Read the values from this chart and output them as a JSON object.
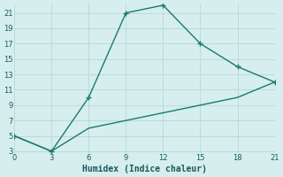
{
  "xlabel": "Humidex (Indice chaleur)",
  "xlim": [
    0,
    21
  ],
  "ylim": [
    3,
    22
  ],
  "xticks": [
    0,
    3,
    6,
    9,
    12,
    15,
    18,
    21
  ],
  "yticks": [
    3,
    5,
    7,
    9,
    11,
    13,
    15,
    17,
    19,
    21
  ],
  "background_color": "#d6eeee",
  "grid_color": "#b8d8d8",
  "line_color": "#1a7a6e",
  "line1_x": [
    0,
    3,
    6,
    9,
    12,
    15,
    18,
    21
  ],
  "line1_y": [
    5,
    3,
    10,
    21,
    22,
    17,
    14,
    12
  ],
  "line2_x": [
    0,
    3,
    6,
    9,
    12,
    15,
    18,
    21
  ],
  "line2_y": [
    5,
    3,
    6,
    7,
    8,
    9,
    10,
    12
  ],
  "markersize": 3,
  "linewidth": 1.0
}
